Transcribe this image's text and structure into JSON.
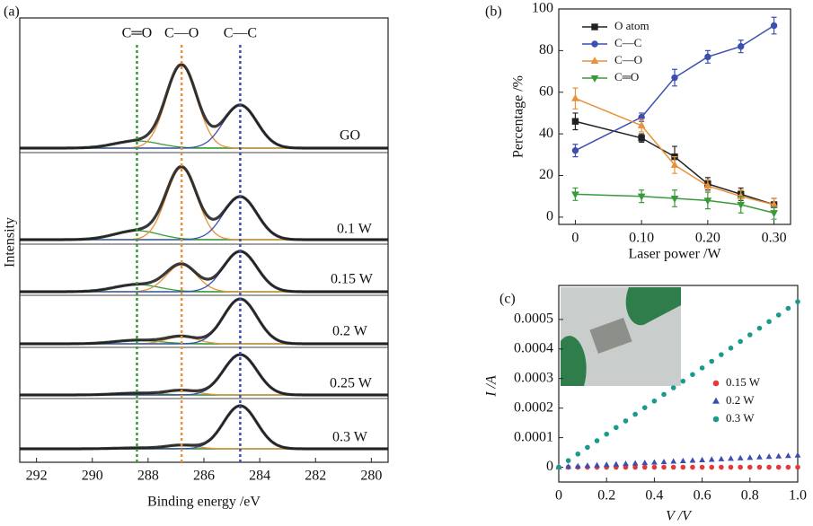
{
  "chart_data": [
    {
      "type": "xps",
      "panel_label": "(a)",
      "x_label": "Binding energy /eV",
      "y_label": "Intensity",
      "xlim": [
        292.6,
        279.4
      ],
      "xticks": [
        292,
        290,
        288,
        286,
        284,
        282,
        280
      ],
      "envelope_color": "#151515",
      "peaks": [
        {
          "label": "C═O",
          "center": 288.4,
          "width": 0.8,
          "color": "#3a9a3a"
        },
        {
          "label": "C—O",
          "center": 286.8,
          "width": 0.55,
          "color": "#e8913a"
        },
        {
          "label": "C—C",
          "center": 284.7,
          "width": 0.6,
          "color": "#3b4fb0"
        }
      ],
      "series": [
        {
          "name": "GO",
          "heights": [
            0.08,
            0.92,
            0.48
          ]
        },
        {
          "name": "0.1 W",
          "heights": [
            0.1,
            0.8,
            0.48
          ]
        },
        {
          "name": "0.15 W",
          "heights": [
            0.08,
            0.3,
            0.45
          ]
        },
        {
          "name": "0.2 W",
          "heights": [
            0.04,
            0.08,
            0.5
          ]
        },
        {
          "name": "0.25 W",
          "heights": [
            0.02,
            0.05,
            0.45
          ]
        },
        {
          "name": "0.3 W",
          "heights": [
            0.01,
            0.04,
            0.48
          ]
        }
      ]
    },
    {
      "type": "line",
      "panel_label": "(b)",
      "x_label": "Laser power /W",
      "y_label": "Percentage /%",
      "x": [
        0,
        0.1,
        0.15,
        0.2,
        0.25,
        0.3
      ],
      "xlim": [
        -0.025,
        0.325
      ],
      "xticks": [
        0,
        {
          "value": 0.1,
          "label": "0.10"
        },
        {
          "value": 0.2,
          "label": "0.20"
        },
        {
          "value": 0.3,
          "label": "0.30"
        }
      ],
      "ylim": [
        -3.5,
        100
      ],
      "yticks": [
        0,
        20,
        40,
        60,
        80,
        100
      ],
      "series": [
        {
          "name": "O atom",
          "color": "#222222",
          "marker": "square",
          "values": [
            46,
            38,
            29,
            16,
            11,
            6
          ],
          "errors": [
            4,
            2,
            5,
            3,
            3,
            3
          ]
        },
        {
          "name": "C—C",
          "color": "#3b4fb0",
          "marker": "circle",
          "values": [
            32,
            48,
            67,
            77,
            82,
            92
          ],
          "errors": [
            3,
            2,
            4,
            3,
            3,
            4
          ]
        },
        {
          "name": "C—O",
          "color": "#e8913a",
          "marker": "triangle-up",
          "values": [
            57,
            44,
            25,
            15,
            10,
            6
          ],
          "errors": [
            5,
            3,
            4,
            3,
            3,
            3
          ]
        },
        {
          "name": "C═O",
          "color": "#3a9a3a",
          "marker": "triangle-down",
          "values": [
            11,
            10,
            9,
            8,
            6,
            2
          ],
          "errors": [
            3,
            3,
            4,
            4,
            4,
            3
          ]
        }
      ]
    },
    {
      "type": "scatter",
      "panel_label": "(c)",
      "x_label": "V /V",
      "y_label": "I /A",
      "x": [
        0,
        0.04,
        0.08,
        0.12,
        0.16,
        0.2,
        0.24,
        0.28,
        0.32,
        0.36,
        0.4,
        0.44,
        0.48,
        0.52,
        0.56,
        0.6,
        0.64,
        0.68,
        0.72,
        0.76,
        0.8,
        0.84,
        0.88,
        0.92,
        0.96,
        1
      ],
      "xlim": [
        0,
        1
      ],
      "xticks": [
        0,
        0.2,
        0.4,
        0.6,
        0.8,
        {
          "value": 1,
          "label": "1.0"
        }
      ],
      "ylim": [
        -5e-05,
        0.000615
      ],
      "yticks": [
        0,
        0.0001,
        0.0002,
        0.0003,
        0.0004,
        0.0005
      ],
      "series": [
        {
          "name": "0.15 W",
          "color": "#e23a3a",
          "marker": "circle",
          "values": [
            0,
            0,
            0,
            0,
            0,
            0,
            0,
            0,
            0,
            0,
            0,
            0,
            0,
            0,
            0,
            0,
            0,
            0,
            0,
            0,
            0,
            0,
            0,
            0,
            0,
            0
          ]
        },
        {
          "name": "0.2 W",
          "color": "#3b4fb0",
          "marker": "triangle-up",
          "values": [
            0,
            1.6e-06,
            3.2e-06,
            4.8e-06,
            6.4e-06,
            8e-06,
            9.6e-06,
            1.12e-05,
            1.28e-05,
            1.44e-05,
            1.6e-05,
            1.76e-05,
            1.92e-05,
            2.08e-05,
            2.24e-05,
            2.4e-05,
            2.56e-05,
            2.72e-05,
            2.88e-05,
            3.04e-05,
            3.2e-05,
            3.36e-05,
            3.52e-05,
            3.68e-05,
            3.84e-05,
            4e-05
          ]
        },
        {
          "name": "0.3 W",
          "color": "#1a9a8a",
          "marker": "circle",
          "values": [
            0,
            2.24e-05,
            4.48e-05,
            6.72e-05,
            8.96e-05,
            0.000112,
            0.0001344,
            0.0001568,
            0.0001792,
            0.0002016,
            0.000224,
            0.0002464,
            0.0002688,
            0.0002912,
            0.0003136,
            0.000336,
            0.0003584,
            0.0003808,
            0.0004032,
            0.0004256,
            0.000448,
            0.0004704,
            0.0004928,
            0.0005152,
            0.0005376,
            0.00056
          ]
        }
      ]
    }
  ]
}
